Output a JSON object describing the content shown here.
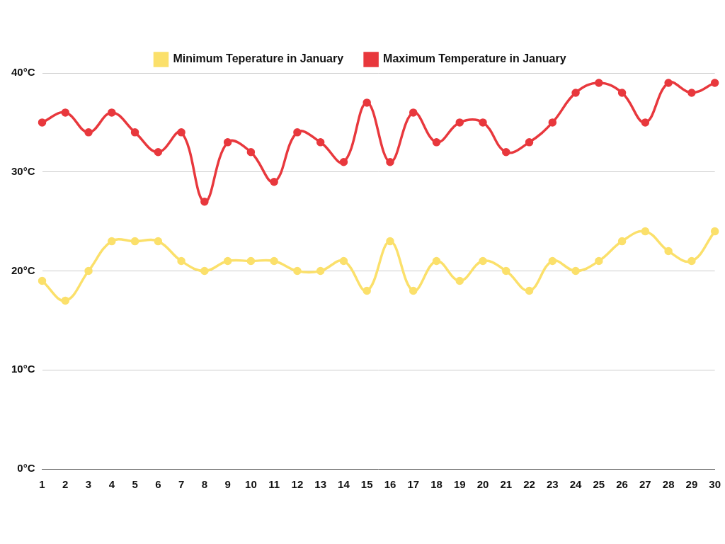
{
  "chart_data": {
    "type": "line",
    "categories": [
      "1",
      "2",
      "3",
      "4",
      "5",
      "6",
      "7",
      "8",
      "9",
      "10",
      "11",
      "12",
      "13",
      "14",
      "15",
      "16",
      "17",
      "18",
      "19",
      "20",
      "21",
      "22",
      "23",
      "24",
      "25",
      "26",
      "27",
      "28",
      "29",
      "30"
    ],
    "series": [
      {
        "name": "Minimum Teperature in January",
        "color": "#fbe06b",
        "values": [
          19,
          17,
          20,
          23,
          23,
          23,
          21,
          20,
          21,
          21,
          21,
          20,
          20,
          21,
          18,
          23,
          18,
          21,
          19,
          21,
          20,
          18,
          21,
          20,
          21,
          23,
          24,
          22,
          21,
          24
        ]
      },
      {
        "name": "Maximum Temperature in January",
        "color": "#e8383d",
        "values": [
          35,
          36,
          34,
          36,
          34,
          32,
          34,
          27,
          33,
          32,
          29,
          34,
          33,
          31,
          37,
          31,
          36,
          33,
          35,
          35,
          32,
          33,
          35,
          38,
          39,
          38,
          35,
          39,
          38,
          39
        ]
      }
    ],
    "ylim": [
      0,
      40
    ],
    "yticks": [
      {
        "value": 0,
        "label": "0°C"
      },
      {
        "value": 10,
        "label": "10°C"
      },
      {
        "value": 20,
        "label": "20°C"
      },
      {
        "value": 30,
        "label": "30°C"
      },
      {
        "value": 40,
        "label": "40°C"
      }
    ],
    "grid": true,
    "legend": "top",
    "marker": "circle",
    "line_style": "solid"
  }
}
